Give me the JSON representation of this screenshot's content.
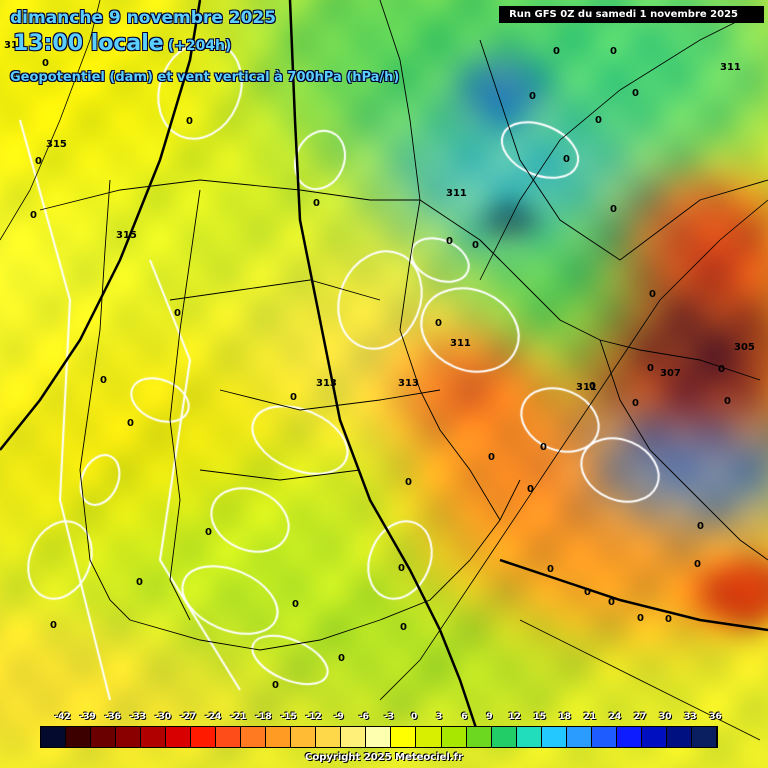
{
  "header": {
    "date": "dimanche 9 novembre 2025",
    "time": "13:00 locale",
    "lead": "(+204h)",
    "parameter": "Geopotentiel (dam) et vent vertical à 700hPa (hPa/h)",
    "run": "Run GFS 0Z du samedi 1 novembre 2025"
  },
  "scale": {
    "labels": [
      "-42",
      "-39",
      "-36",
      "-33",
      "-30",
      "-27",
      "-24",
      "-21",
      "-18",
      "-15",
      "-12",
      "-9",
      "-6",
      "-3",
      "0",
      "3",
      "6",
      "9",
      "12",
      "15",
      "18",
      "21",
      "24",
      "27",
      "30",
      "33",
      "36"
    ],
    "colors": [
      "#040a2e",
      "#3c0000",
      "#6a0000",
      "#8a0000",
      "#b00000",
      "#d80000",
      "#ff1a00",
      "#ff4d1a",
      "#ff7a20",
      "#ff9a22",
      "#ffbb33",
      "#ffd84a",
      "#fff07a",
      "#ffffb0",
      "#ffff00",
      "#d8f000",
      "#a8e800",
      "#6cd820",
      "#22cc66",
      "#22ddbb",
      "#22c8ff",
      "#2a9cff",
      "#1f5cff",
      "#0d1cff",
      "#0010c0",
      "#001080",
      "#0a1f60"
    ]
  },
  "isolines": {
    "labels": [
      "313",
      "315",
      "315",
      "313",
      "313",
      "311",
      "311",
      "311",
      "305",
      "307",
      "311"
    ]
  },
  "zero_marks": [
    "0",
    "0",
    "0",
    "0",
    "0",
    "0",
    "0",
    "0",
    "0",
    "0",
    "0",
    "0",
    "0",
    "0",
    "0",
    "0",
    "0",
    "0",
    "0",
    "0",
    "0",
    "0",
    "0",
    "0",
    "0",
    "0",
    "0",
    "0",
    "0",
    "0",
    "0",
    "0",
    "0",
    "0",
    "0",
    "0",
    "0",
    "0",
    "0",
    "0",
    "0",
    "0",
    "0",
    "0"
  ],
  "copyright": "Copyright 2025 Meteociel.fr"
}
